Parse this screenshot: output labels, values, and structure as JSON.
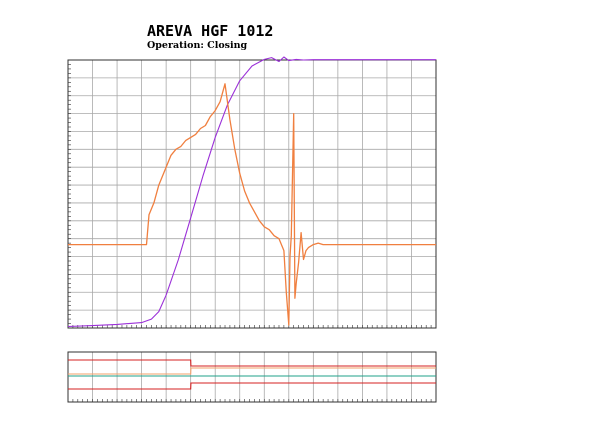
{
  "header": {
    "title": "AREVA HGF 1012",
    "subtitle": "Operation: Closing"
  },
  "colors": {
    "travel": "#9b30d8",
    "current": "#f07f3f",
    "grid": "#a8a8a8",
    "frame": "#303030",
    "timing_red": "#d42020",
    "timing_teal": "#1fa08a",
    "timing_orange": "#f2a06a"
  },
  "chart_data": [
    {
      "type": "line",
      "title": "AREVA HGF 1012",
      "subtitle": "Operation: Closing",
      "xlabel": "",
      "ylabel": "",
      "grid": true,
      "x_range": [
        0,
        15
      ],
      "y_range": [
        0,
        9
      ],
      "series": [
        {
          "color": "#9b30d8",
          "x": [
            0,
            1,
            2,
            3,
            3.4,
            3.7,
            4,
            4.5,
            5,
            5.5,
            6,
            6.5,
            7,
            7.5,
            8,
            8.3,
            8.6,
            8.8,
            9,
            9.3,
            9.6,
            10,
            12,
            15
          ],
          "y": [
            0.05,
            0.08,
            0.12,
            0.18,
            0.3,
            0.55,
            1.1,
            2.3,
            3.7,
            5.1,
            6.4,
            7.5,
            8.3,
            8.8,
            9.02,
            9.08,
            8.95,
            9.1,
            8.98,
            9.02,
            9.0,
            9.01,
            9.01,
            9.01
          ]
        },
        {
          "color": "#f07f3f",
          "x": [
            0,
            3.2,
            3.3,
            3.5,
            3.7,
            4.0,
            4.2,
            4.4,
            4.6,
            4.8,
            5.0,
            5.2,
            5.4,
            5.6,
            5.8,
            6.0,
            6.2,
            6.4,
            6.6,
            6.8,
            7.0,
            7.2,
            7.4,
            7.6,
            7.8,
            8.0,
            8.2,
            8.4,
            8.6,
            8.8,
            8.9,
            9.0,
            9.05,
            9.1,
            9.2,
            9.25,
            9.3,
            9.4,
            9.5,
            9.6,
            9.7,
            9.8,
            10.0,
            10.2,
            10.4,
            10.6,
            15
          ],
          "y": [
            2.8,
            2.8,
            3.8,
            4.2,
            4.8,
            5.4,
            5.8,
            6.0,
            6.1,
            6.3,
            6.4,
            6.5,
            6.7,
            6.8,
            7.1,
            7.3,
            7.6,
            8.2,
            7.0,
            6.0,
            5.2,
            4.6,
            4.2,
            3.9,
            3.6,
            3.4,
            3.3,
            3.1,
            3.0,
            2.6,
            1.2,
            0.1,
            2.4,
            3.1,
            7.2,
            1.0,
            1.5,
            2.2,
            3.2,
            2.3,
            2.6,
            2.7,
            2.8,
            2.85,
            2.8,
            2.8,
            2.8
          ]
        }
      ]
    },
    {
      "type": "line",
      "title": "",
      "grid": true,
      "x_range": [
        0,
        15
      ],
      "channels": [
        {
          "color": "#d42020",
          "x": [
            0,
            5,
            5.01,
            15
          ],
          "y": [
            1,
            1,
            0,
            0
          ]
        },
        {
          "color": "#f2a06a",
          "x": [
            0,
            5,
            5.01,
            15
          ],
          "y": [
            0,
            0,
            1,
            1
          ]
        },
        {
          "color": "#1fa08a",
          "x": [
            0,
            5,
            5.01,
            15
          ],
          "y": [
            1,
            1,
            1,
            1
          ]
        },
        {
          "color": "#d42020",
          "x": [
            0,
            5,
            5.01,
            15
          ],
          "y": [
            0,
            0,
            1,
            1
          ]
        }
      ]
    }
  ]
}
